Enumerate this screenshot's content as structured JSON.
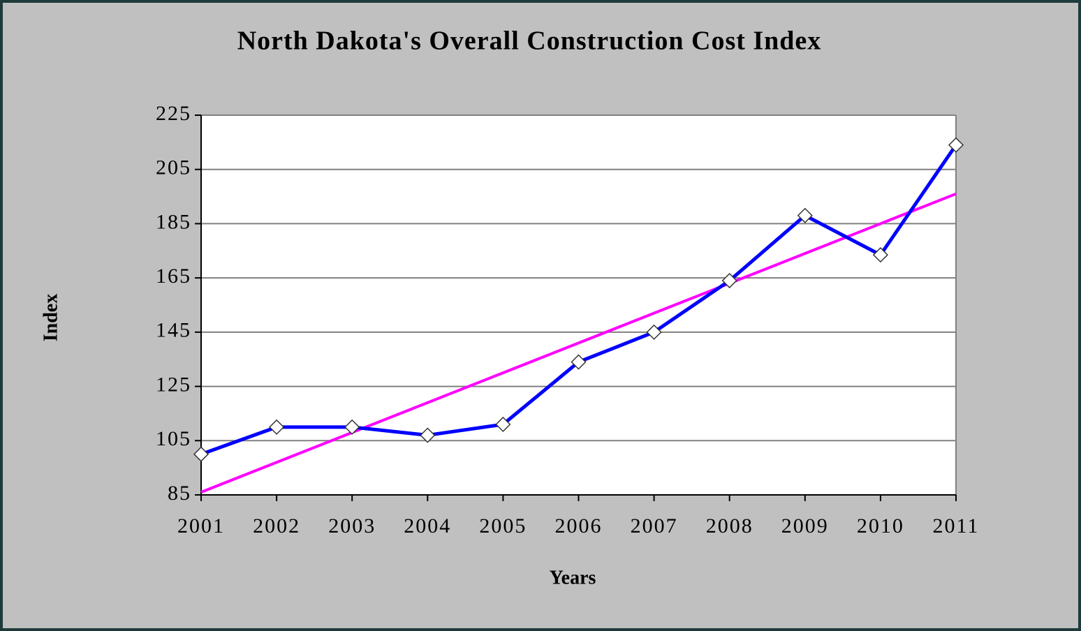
{
  "chart_data": {
    "type": "line",
    "title": "North Dakota's Overall Construction Cost Index",
    "x_label": "Years",
    "y_label": "Index",
    "categories": [
      "2001",
      "2002",
      "2003",
      "2004",
      "2005",
      "2006",
      "2007",
      "2008",
      "2009",
      "2010",
      "2011"
    ],
    "series": [
      {
        "color": "#0000ff",
        "marker": "diamond",
        "values": [
          100,
          110,
          110,
          107,
          111,
          134,
          145,
          164,
          188,
          173.5,
          214
        ]
      },
      {
        "color": "#ff00ff",
        "values": [
          86,
          97,
          108,
          119,
          130,
          141,
          152,
          163,
          174,
          185,
          196
        ]
      }
    ],
    "ylim": [
      85,
      225
    ],
    "yticks": [
      85,
      105,
      125,
      145,
      165,
      185,
      205,
      225
    ],
    "grid": true
  }
}
